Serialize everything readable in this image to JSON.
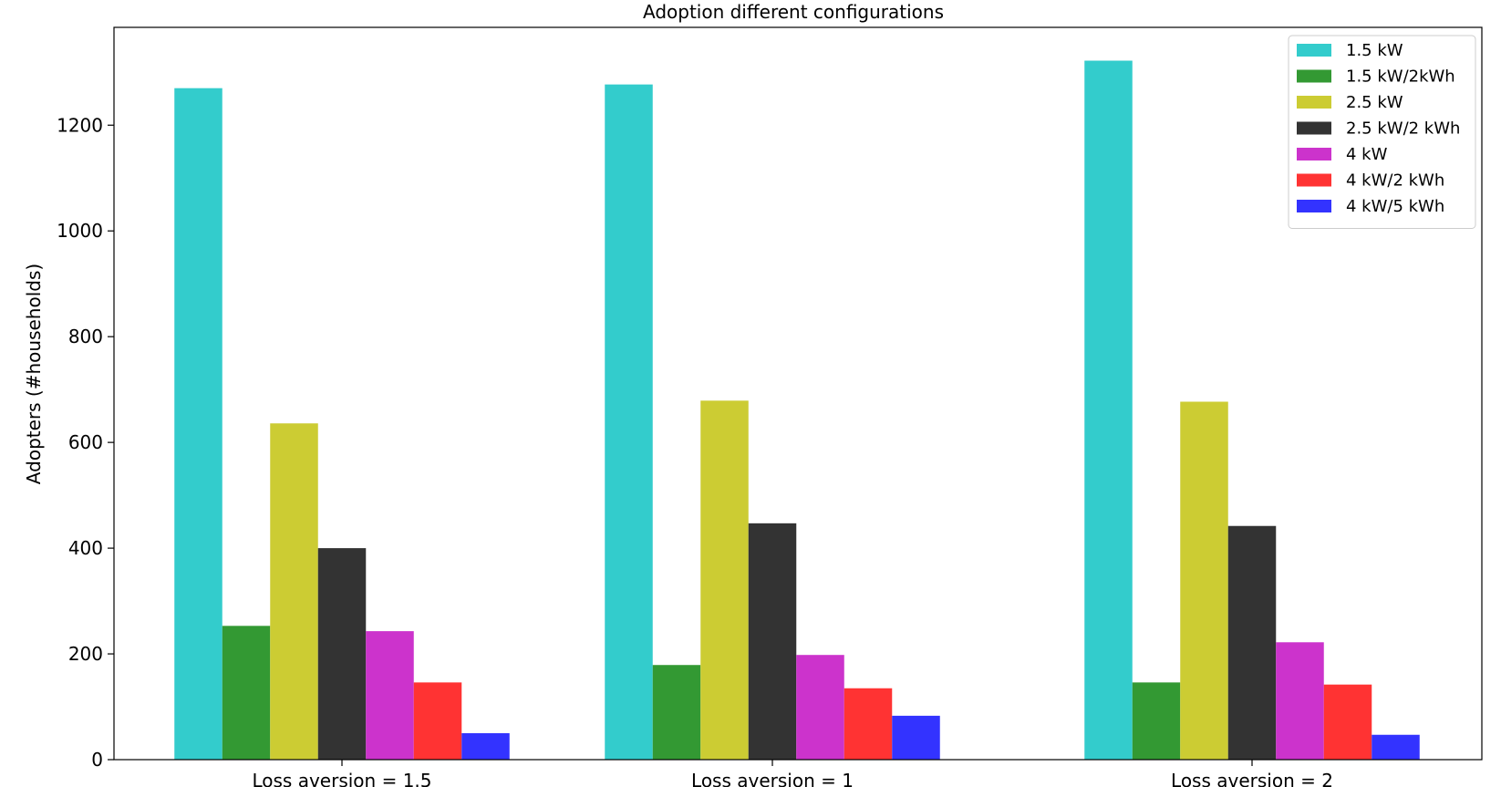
{
  "chart_data": {
    "type": "bar",
    "title": "Adoption different configurations",
    "xlabel": "",
    "ylabel": "Adopters (#households)",
    "categories": [
      "Loss aversion = 1.5",
      "Loss aversion = 1",
      "Loss aversion = 2"
    ],
    "ylim": [
      0,
      1385
    ],
    "yticks": [
      0,
      200,
      400,
      600,
      800,
      1000,
      1200
    ],
    "grid": false,
    "legend_position": "top-right",
    "series": [
      {
        "name": "1.5 kW",
        "color": "#33cccc",
        "values": [
          1270,
          1277,
          1322
        ]
      },
      {
        "name": "1.5 kW/2kWh",
        "color": "#339933",
        "values": [
          253,
          179,
          146
        ]
      },
      {
        "name": "2.5 kW",
        "color": "#cccc33",
        "values": [
          636,
          679,
          677
        ]
      },
      {
        "name": "2.5 kW/2 kWh",
        "color": "#333333",
        "values": [
          400,
          447,
          442
        ]
      },
      {
        "name": "4 kW",
        "color": "#cc33cc",
        "values": [
          243,
          198,
          222
        ]
      },
      {
        "name": "4 kW/2 kWh",
        "color": "#ff3333",
        "values": [
          146,
          135,
          142
        ]
      },
      {
        "name": "4 kW/5 kWh",
        "color": "#3333ff",
        "values": [
          50,
          83,
          47
        ]
      }
    ]
  }
}
